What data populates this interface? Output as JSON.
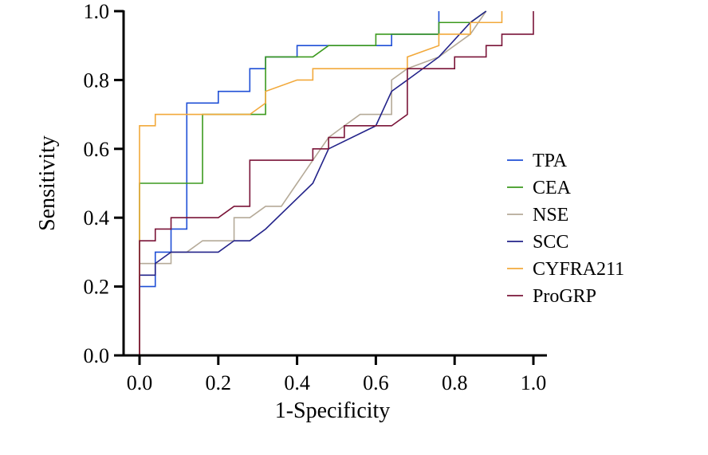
{
  "chart_data": {
    "type": "line",
    "xlabel": "1-Specificity",
    "ylabel": "Sensitivity",
    "xlim": [
      0,
      1
    ],
    "ylim": [
      0,
      1
    ],
    "x_ticks": [
      "0.0",
      "0.2",
      "0.4",
      "0.6",
      "0.8",
      "1.0"
    ],
    "y_ticks": [
      "0.0",
      "0.2",
      "0.4",
      "0.6",
      "0.8",
      "1.0"
    ],
    "grid": false,
    "legend_position": "right",
    "series": [
      {
        "name": "TPA",
        "color": "#1f4fd6",
        "points": [
          [
            0,
            0
          ],
          [
            0,
            0.2
          ],
          [
            0.04,
            0.2
          ],
          [
            0.04,
            0.3
          ],
          [
            0.08,
            0.3
          ],
          [
            0.08,
            0.367
          ],
          [
            0.12,
            0.367
          ],
          [
            0.12,
            0.733
          ],
          [
            0.2,
            0.733
          ],
          [
            0.2,
            0.767
          ],
          [
            0.24,
            0.767
          ],
          [
            0.28,
            0.767
          ],
          [
            0.28,
            0.833
          ],
          [
            0.32,
            0.833
          ],
          [
            0.32,
            0.867
          ],
          [
            0.4,
            0.867
          ],
          [
            0.4,
            0.9
          ],
          [
            0.64,
            0.9
          ],
          [
            0.64,
            0.933
          ],
          [
            0.76,
            0.933
          ],
          [
            0.76,
            1.0
          ]
        ]
      },
      {
        "name": "CEA",
        "color": "#3c9a1e",
        "points": [
          [
            0,
            0
          ],
          [
            0,
            0.5
          ],
          [
            0.16,
            0.5
          ],
          [
            0.16,
            0.7
          ],
          [
            0.32,
            0.7
          ],
          [
            0.32,
            0.867
          ],
          [
            0.44,
            0.867
          ],
          [
            0.48,
            0.9
          ],
          [
            0.6,
            0.9
          ],
          [
            0.6,
            0.933
          ],
          [
            0.76,
            0.933
          ],
          [
            0.76,
            0.967
          ],
          [
            0.84,
            0.967
          ],
          [
            0.88,
            1.0
          ]
        ]
      },
      {
        "name": "NSE",
        "color": "#b5aa98",
        "points": [
          [
            0,
            0
          ],
          [
            0,
            0.267
          ],
          [
            0.08,
            0.267
          ],
          [
            0.08,
            0.3
          ],
          [
            0.12,
            0.3
          ],
          [
            0.16,
            0.333
          ],
          [
            0.24,
            0.333
          ],
          [
            0.24,
            0.367
          ],
          [
            0.24,
            0.4
          ],
          [
            0.28,
            0.4
          ],
          [
            0.32,
            0.433
          ],
          [
            0.36,
            0.433
          ],
          [
            0.4,
            0.5
          ],
          [
            0.44,
            0.567
          ],
          [
            0.48,
            0.633
          ],
          [
            0.52,
            0.667
          ],
          [
            0.56,
            0.7
          ],
          [
            0.64,
            0.7
          ],
          [
            0.64,
            0.8
          ],
          [
            0.68,
            0.833
          ],
          [
            0.76,
            0.867
          ],
          [
            0.84,
            0.933
          ],
          [
            0.88,
            1.0
          ]
        ]
      },
      {
        "name": "SCC",
        "color": "#23238a",
        "points": [
          [
            0,
            0
          ],
          [
            0,
            0.233
          ],
          [
            0.04,
            0.233
          ],
          [
            0.04,
            0.267
          ],
          [
            0.08,
            0.3
          ],
          [
            0.2,
            0.3
          ],
          [
            0.24,
            0.333
          ],
          [
            0.28,
            0.333
          ],
          [
            0.32,
            0.367
          ],
          [
            0.44,
            0.5
          ],
          [
            0.48,
            0.6
          ],
          [
            0.6,
            0.667
          ],
          [
            0.64,
            0.767
          ],
          [
            0.68,
            0.8
          ],
          [
            0.76,
            0.867
          ],
          [
            0.84,
            0.967
          ],
          [
            0.88,
            1.0
          ]
        ]
      },
      {
        "name": "CYFRA211",
        "color": "#f2a93b",
        "points": [
          [
            0,
            0
          ],
          [
            0,
            0.667
          ],
          [
            0.04,
            0.667
          ],
          [
            0.04,
            0.7
          ],
          [
            0.28,
            0.7
          ],
          [
            0.32,
            0.733
          ],
          [
            0.32,
            0.767
          ],
          [
            0.4,
            0.8
          ],
          [
            0.44,
            0.8
          ],
          [
            0.44,
            0.833
          ],
          [
            0.68,
            0.833
          ],
          [
            0.68,
            0.867
          ],
          [
            0.76,
            0.9
          ],
          [
            0.76,
            0.933
          ],
          [
            0.84,
            0.933
          ],
          [
            0.84,
            0.967
          ],
          [
            0.92,
            0.967
          ],
          [
            0.92,
            1.0
          ]
        ]
      },
      {
        "name": "ProGRP",
        "color": "#7a1438",
        "points": [
          [
            0,
            0
          ],
          [
            0,
            0.333
          ],
          [
            0.04,
            0.333
          ],
          [
            0.04,
            0.367
          ],
          [
            0.08,
            0.367
          ],
          [
            0.08,
            0.4
          ],
          [
            0.2,
            0.4
          ],
          [
            0.24,
            0.433
          ],
          [
            0.28,
            0.433
          ],
          [
            0.28,
            0.567
          ],
          [
            0.44,
            0.567
          ],
          [
            0.44,
            0.6
          ],
          [
            0.48,
            0.6
          ],
          [
            0.48,
            0.633
          ],
          [
            0.52,
            0.633
          ],
          [
            0.52,
            0.667
          ],
          [
            0.64,
            0.667
          ],
          [
            0.68,
            0.7
          ],
          [
            0.68,
            0.833
          ],
          [
            0.8,
            0.833
          ],
          [
            0.8,
            0.867
          ],
          [
            0.88,
            0.867
          ],
          [
            0.88,
            0.9
          ],
          [
            0.92,
            0.9
          ],
          [
            0.92,
            0.933
          ],
          [
            1.0,
            0.933
          ],
          [
            1.0,
            1.0
          ]
        ]
      }
    ]
  }
}
